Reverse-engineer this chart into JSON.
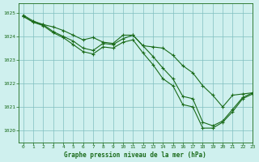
{
  "title": "Graphe pression niveau de la mer (hPa)",
  "background_color": "#cff0ee",
  "line_color": "#1a6b1a",
  "grid_color": "#7fbfbf",
  "xlim": [
    -0.5,
    23
  ],
  "ylim": [
    1019.5,
    1025.4
  ],
  "yticks": [
    1020,
    1021,
    1022,
    1023,
    1024,
    1025
  ],
  "xticks": [
    0,
    1,
    2,
    3,
    4,
    5,
    6,
    7,
    8,
    9,
    10,
    11,
    12,
    13,
    14,
    15,
    16,
    17,
    18,
    19,
    20,
    21,
    22,
    23
  ],
  "series1": {
    "x": [
      0,
      1,
      2,
      3,
      4,
      5,
      6,
      7,
      8,
      9,
      10,
      11,
      12,
      13,
      14,
      15,
      16,
      17,
      18,
      19,
      20,
      21,
      22,
      23
    ],
    "y": [
      1024.9,
      1024.65,
      1024.5,
      1024.4,
      1024.25,
      1024.05,
      1023.85,
      1023.95,
      1023.75,
      1023.7,
      1024.05,
      1024.05,
      1023.6,
      1023.55,
      1023.5,
      1023.2,
      1022.75,
      1022.45,
      1021.9,
      1021.5,
      1021.0,
      1021.5,
      1021.55,
      1021.6
    ]
  },
  "series2": {
    "x": [
      0,
      1,
      2,
      3,
      4,
      5,
      6,
      7,
      8,
      9,
      10,
      11,
      12,
      13,
      14,
      15,
      16,
      17,
      18,
      19,
      20,
      21,
      22,
      23
    ],
    "y": [
      1024.85,
      1024.6,
      1024.5,
      1024.2,
      1024.0,
      1023.8,
      1023.5,
      1023.4,
      1023.7,
      1023.65,
      1023.9,
      1024.05,
      1023.6,
      1023.15,
      1022.65,
      1022.2,
      1021.45,
      1021.35,
      1020.35,
      1020.2,
      1020.4,
      1020.9,
      1021.4,
      1021.6
    ]
  },
  "series3": {
    "x": [
      0,
      1,
      2,
      3,
      4,
      5,
      6,
      7,
      8,
      9,
      10,
      11,
      12,
      13,
      14,
      15,
      16,
      17,
      18,
      19,
      20,
      21,
      22,
      23
    ],
    "y": [
      1024.85,
      1024.6,
      1024.45,
      1024.15,
      1023.95,
      1023.65,
      1023.35,
      1023.25,
      1023.55,
      1023.5,
      1023.75,
      1023.85,
      1023.3,
      1022.8,
      1022.2,
      1021.9,
      1021.1,
      1021.0,
      1020.1,
      1020.1,
      1020.35,
      1020.8,
      1021.35,
      1021.55
    ]
  }
}
